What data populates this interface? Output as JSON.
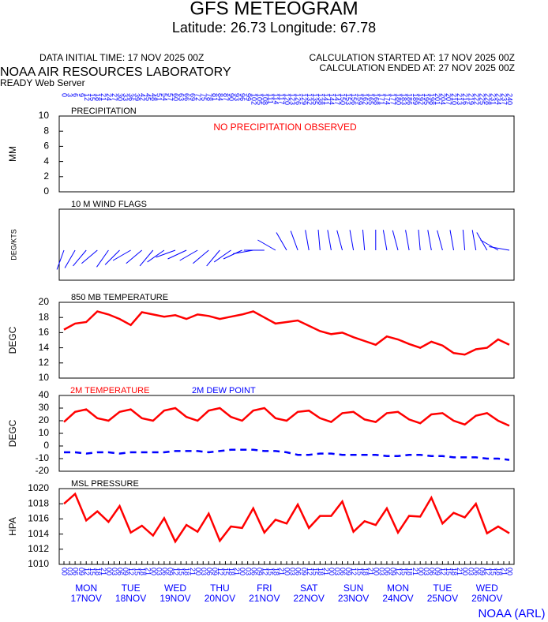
{
  "header": {
    "title": "GFS METEOGRAM",
    "subtitle": "Latitude: 26.73 Longitude:  67.78",
    "data_initial": "DATA INITIAL TIME: 17 NOV 2025 00Z",
    "calc_started": "CALCULATION STARTED AT: 17 NOV 2025 00Z",
    "calc_ended": "CALCULATION ENDED AT: 27 NOV 2025 00Z",
    "lab": "NOAA AIR RESOURCES LABORATORY",
    "server": "READY Web Server",
    "footer": "NOAA (ARL)"
  },
  "axis": {
    "hours": [
      0,
      3,
      6,
      9,
      12,
      15,
      18,
      21,
      24,
      27,
      30,
      33,
      36,
      39,
      42,
      45,
      48,
      51,
      54,
      57,
      60,
      63,
      66,
      69,
      72,
      75,
      78,
      81,
      84,
      87,
      90,
      93,
      96,
      99,
      102,
      105,
      108,
      111,
      114,
      117,
      120,
      123,
      126,
      129,
      132,
      135,
      138,
      141,
      144,
      147,
      150,
      153,
      156,
      159,
      162,
      165,
      168,
      171,
      174,
      177,
      180,
      183,
      186,
      189,
      192,
      195,
      198,
      201,
      204,
      207,
      210,
      213,
      216,
      219,
      222,
      225,
      228,
      231,
      234,
      237,
      240
    ],
    "time_labels": [
      "00",
      "03",
      "06",
      "09",
      "12",
      "15",
      "18",
      "21",
      "00",
      "03",
      "06",
      "09",
      "12",
      "15",
      "18",
      "21",
      "00",
      "03",
      "06",
      "09",
      "12",
      "15",
      "18",
      "21",
      "00",
      "03",
      "06",
      "09",
      "12",
      "15",
      "18",
      "21",
      "00",
      "03",
      "06",
      "09",
      "12",
      "15",
      "18",
      "21",
      "00",
      "03",
      "06",
      "09",
      "12",
      "15",
      "18",
      "21",
      "00",
      "03",
      "06",
      "09",
      "12",
      "15",
      "18",
      "21",
      "00",
      "03",
      "06",
      "09",
      "12",
      "15",
      "18",
      "21",
      "00",
      "03",
      "06",
      "09",
      "12",
      "15",
      "18",
      "21",
      "00",
      "03",
      "06",
      "09",
      "12",
      "15",
      "18",
      "21",
      "00"
    ],
    "day_hours": [
      12,
      36,
      60,
      84,
      108,
      132,
      156,
      180,
      204,
      228
    ],
    "days": [
      "MON",
      "TUE",
      "WED",
      "THU",
      "FRI",
      "SAT",
      "SUN",
      "MON",
      "TUE",
      "WED"
    ],
    "dates": [
      "17NOV",
      "18NOV",
      "19NOV",
      "20NOV",
      "21NOV",
      "22NOV",
      "23NOV",
      "24NOV",
      "25NOV",
      "26NOV"
    ],
    "xlim": [
      0,
      240
    ]
  },
  "chart_data": [
    {
      "type": "bar",
      "title": "PRECIPITATION",
      "ylabel": "MM",
      "annotation": "NO PRECIPITATION OBSERVED",
      "annotation_color": "#ff0000",
      "ylim": [
        0,
        10
      ],
      "yticks": [
        0,
        2,
        4,
        6,
        8,
        10
      ]
    },
    {
      "type": "wind",
      "title": "10 M  WIND FLAGS",
      "ylabel": "DEG/KTS",
      "color": "#0000ff",
      "x": [
        0,
        6,
        12,
        18,
        24,
        30,
        36,
        42,
        48,
        54,
        60,
        66,
        72,
        78,
        84,
        90,
        96,
        102,
        108,
        114,
        120,
        126,
        132,
        138,
        144,
        150,
        156,
        162,
        168,
        174,
        180,
        186,
        192,
        198,
        204,
        210,
        216,
        222,
        228,
        234,
        240
      ],
      "values": [
        200,
        210,
        220,
        230,
        215,
        225,
        240,
        230,
        220,
        235,
        250,
        245,
        240,
        230,
        220,
        235,
        245,
        260,
        270,
        300,
        330,
        340,
        350,
        355,
        350,
        345,
        350,
        355,
        360,
        350,
        345,
        350,
        355,
        350,
        345,
        350,
        355,
        350,
        330,
        300,
        280
      ]
    },
    {
      "type": "line",
      "title": "850 MB  TEMPERATURE",
      "ylabel": "DEGC",
      "ylim": [
        10,
        20
      ],
      "yticks": [
        10,
        12,
        14,
        16,
        18,
        20
      ],
      "x": [
        0,
        6,
        12,
        18,
        24,
        30,
        36,
        42,
        48,
        54,
        60,
        66,
        72,
        78,
        84,
        90,
        96,
        102,
        108,
        114,
        120,
        126,
        132,
        138,
        144,
        150,
        156,
        162,
        168,
        174,
        180,
        186,
        192,
        198,
        204,
        210,
        216,
        222,
        228,
        234,
        240
      ],
      "series": [
        {
          "color": "#ff0000",
          "values": [
            16.4,
            17.2,
            17.4,
            18.8,
            18.4,
            17.8,
            17.0,
            18.7,
            18.4,
            18.1,
            18.3,
            17.8,
            18.4,
            18.2,
            17.8,
            18.1,
            18.4,
            18.8,
            18.0,
            17.2,
            17.4,
            17.6,
            16.9,
            16.2,
            15.8,
            16.0,
            15.4,
            14.9,
            14.4,
            15.5,
            15.1,
            14.5,
            14.0,
            14.8,
            14.3,
            13.3,
            13.1,
            13.8,
            14.0,
            15.1,
            14.4
          ]
        }
      ]
    },
    {
      "type": "line",
      "ylabel": "DEGC",
      "ylim": [
        -20,
        40
      ],
      "yticks": [
        -20,
        -10,
        0,
        10,
        20,
        30,
        40
      ],
      "x": [
        0,
        6,
        12,
        18,
        24,
        30,
        36,
        42,
        48,
        54,
        60,
        66,
        72,
        78,
        84,
        90,
        96,
        102,
        108,
        114,
        120,
        126,
        132,
        138,
        144,
        150,
        156,
        162,
        168,
        174,
        180,
        186,
        192,
        198,
        204,
        210,
        216,
        222,
        228,
        234,
        240
      ],
      "series": [
        {
          "name": "2M TEMPERATURE",
          "color": "#ff0000",
          "style": "solid",
          "values": [
            19,
            27,
            29,
            22,
            20,
            27,
            29,
            22,
            20,
            28,
            30,
            23,
            20,
            28,
            30,
            23,
            20,
            28,
            30,
            22,
            20,
            27,
            28,
            22,
            19,
            26,
            27,
            21,
            19,
            26,
            27,
            21,
            18,
            25,
            26,
            20,
            17,
            24,
            26,
            20,
            16
          ]
        },
        {
          "name": "2M  DEW POINT",
          "color": "#0000ff",
          "style": "dashed",
          "values": [
            -5,
            -5,
            -6,
            -5,
            -5,
            -6,
            -5,
            -5,
            -5,
            -5,
            -4,
            -4,
            -4,
            -5,
            -4,
            -3,
            -3,
            -3,
            -4,
            -4,
            -5,
            -7,
            -7,
            -6,
            -6,
            -7,
            -7,
            -7,
            -7,
            -8,
            -8,
            -7,
            -7,
            -8,
            -8,
            -9,
            -9,
            -9,
            -10,
            -10,
            -11
          ]
        }
      ]
    },
    {
      "type": "line",
      "title": "MSL PRESSURE",
      "ylabel": "HPA",
      "ylim": [
        1010,
        1020
      ],
      "yticks": [
        1010,
        1012,
        1014,
        1016,
        1018,
        1020
      ],
      "x": [
        0,
        6,
        12,
        18,
        24,
        30,
        36,
        42,
        48,
        54,
        60,
        66,
        72,
        78,
        84,
        90,
        96,
        102,
        108,
        114,
        120,
        126,
        132,
        138,
        144,
        150,
        156,
        162,
        168,
        174,
        180,
        186,
        192,
        198,
        204,
        210,
        216,
        222,
        228,
        234,
        240
      ],
      "series": [
        {
          "color": "#ff0000",
          "values": [
            1018,
            1019.3,
            1015.8,
            1017.0,
            1015.6,
            1017.7,
            1014.2,
            1015.1,
            1013.8,
            1016.1,
            1013.0,
            1015.2,
            1014.3,
            1016.7,
            1013.1,
            1015.0,
            1014.8,
            1017.4,
            1014.2,
            1015.9,
            1015.4,
            1017.9,
            1014.8,
            1016.4,
            1016.4,
            1018.3,
            1014.3,
            1015.7,
            1015.2,
            1017.4,
            1014.2,
            1016.4,
            1016.3,
            1018.8,
            1015.4,
            1016.8,
            1016.2,
            1018.0,
            1014.1,
            1015.0,
            1014.1
          ]
        }
      ]
    }
  ]
}
